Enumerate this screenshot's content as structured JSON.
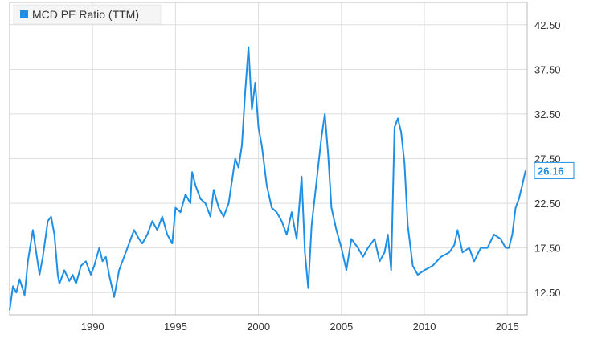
{
  "chart_data": {
    "type": "line",
    "title": "",
    "xlabel": "",
    "ylabel": "",
    "legend": {
      "placement": "top-left",
      "label": "MCD PE Ratio (TTM)"
    },
    "xlim": [
      1985.0,
      2016.2
    ],
    "ylim": [
      10.0,
      45.0
    ],
    "x_ticks": [
      1990,
      1995,
      2000,
      2005,
      2010,
      2015
    ],
    "y_ticks": [
      12.5,
      17.5,
      22.5,
      27.5,
      32.5,
      37.5,
      42.5
    ],
    "x_tick_labels": [
      "1990",
      "1995",
      "2000",
      "2005",
      "2010",
      "2015"
    ],
    "y_tick_labels": [
      "12.50",
      "17.50",
      "22.50",
      "27.50",
      "32.50",
      "37.50",
      "42.50"
    ],
    "grid": true,
    "last_value": "26.16",
    "colors": {
      "line": "#1f8fe5",
      "grid": "#dddddd",
      "frame": "#bbbbbb",
      "legend_bg": "#f5f5f5"
    },
    "series": [
      {
        "name": "MCD PE Ratio (TTM)",
        "x": [
          1985.0,
          1985.2,
          1985.4,
          1985.6,
          1985.9,
          1986.1,
          1986.4,
          1986.8,
          1987.0,
          1987.3,
          1987.5,
          1987.7,
          1987.9,
          1988.0,
          1988.3,
          1988.6,
          1988.8,
          1989.0,
          1989.3,
          1989.6,
          1989.9,
          1990.1,
          1990.4,
          1990.6,
          1990.8,
          1991.0,
          1991.3,
          1991.6,
          1991.9,
          1992.2,
          1992.5,
          1992.8,
          1993.0,
          1993.3,
          1993.6,
          1993.9,
          1994.2,
          1994.5,
          1994.8,
          1995.0,
          1995.3,
          1995.6,
          1995.9,
          1996.0,
          1996.2,
          1996.5,
          1996.8,
          1997.1,
          1997.3,
          1997.6,
          1997.9,
          1998.2,
          1998.4,
          1998.6,
          1998.8,
          1999.0,
          1999.2,
          1999.4,
          1999.6,
          1999.8,
          2000.0,
          2000.2,
          2000.5,
          2000.8,
          2001.1,
          2001.4,
          2001.7,
          2002.0,
          2002.3,
          2002.6,
          2002.8,
          2003.0,
          2003.2,
          2003.5,
          2003.8,
          2004.0,
          2004.2,
          2004.4,
          2004.7,
          2005.0,
          2005.3,
          2005.6,
          2006.0,
          2006.3,
          2006.6,
          2007.0,
          2007.3,
          2007.6,
          2007.8,
          2008.0,
          2008.2,
          2008.4,
          2008.6,
          2008.8,
          2009.0,
          2009.3,
          2009.6,
          2010.0,
          2010.5,
          2011.0,
          2011.5,
          2011.8,
          2012.0,
          2012.3,
          2012.7,
          2013.0,
          2013.4,
          2013.8,
          2014.2,
          2014.6,
          2014.9,
          2015.1,
          2015.3,
          2015.5,
          2015.7,
          2015.9,
          2016.1
        ],
        "y": [
          10.5,
          13.2,
          12.5,
          14.0,
          12.2,
          16.0,
          19.5,
          14.5,
          16.5,
          20.5,
          21.0,
          19.0,
          14.5,
          13.5,
          15.0,
          13.8,
          14.5,
          13.5,
          15.5,
          16.0,
          14.5,
          15.5,
          17.5,
          16.0,
          16.5,
          14.5,
          12.0,
          15.0,
          16.5,
          18.0,
          19.5,
          18.5,
          18.0,
          19.0,
          20.5,
          19.5,
          21.0,
          19.0,
          18.0,
          22.0,
          21.5,
          23.5,
          22.5,
          26.0,
          24.5,
          23.0,
          22.5,
          21.0,
          24.0,
          22.0,
          21.0,
          22.5,
          25.0,
          27.5,
          26.5,
          29.0,
          35.0,
          40.0,
          33.0,
          36.0,
          31.0,
          29.0,
          24.5,
          22.0,
          21.5,
          20.5,
          19.0,
          21.5,
          18.5,
          25.5,
          17.0,
          13.0,
          20.0,
          25.0,
          30.0,
          32.5,
          28.0,
          22.0,
          19.5,
          17.5,
          15.0,
          18.5,
          17.5,
          16.5,
          17.5,
          18.5,
          16.0,
          17.0,
          19.0,
          15.0,
          31.0,
          32.0,
          30.5,
          27.0,
          20.0,
          15.5,
          14.5,
          15.0,
          15.5,
          16.5,
          17.0,
          17.8,
          19.5,
          17.0,
          17.5,
          16.0,
          17.5,
          17.5,
          19.0,
          18.5,
          17.5,
          17.5,
          19.0,
          22.0,
          23.0,
          24.5,
          26.16
        ]
      }
    ]
  }
}
